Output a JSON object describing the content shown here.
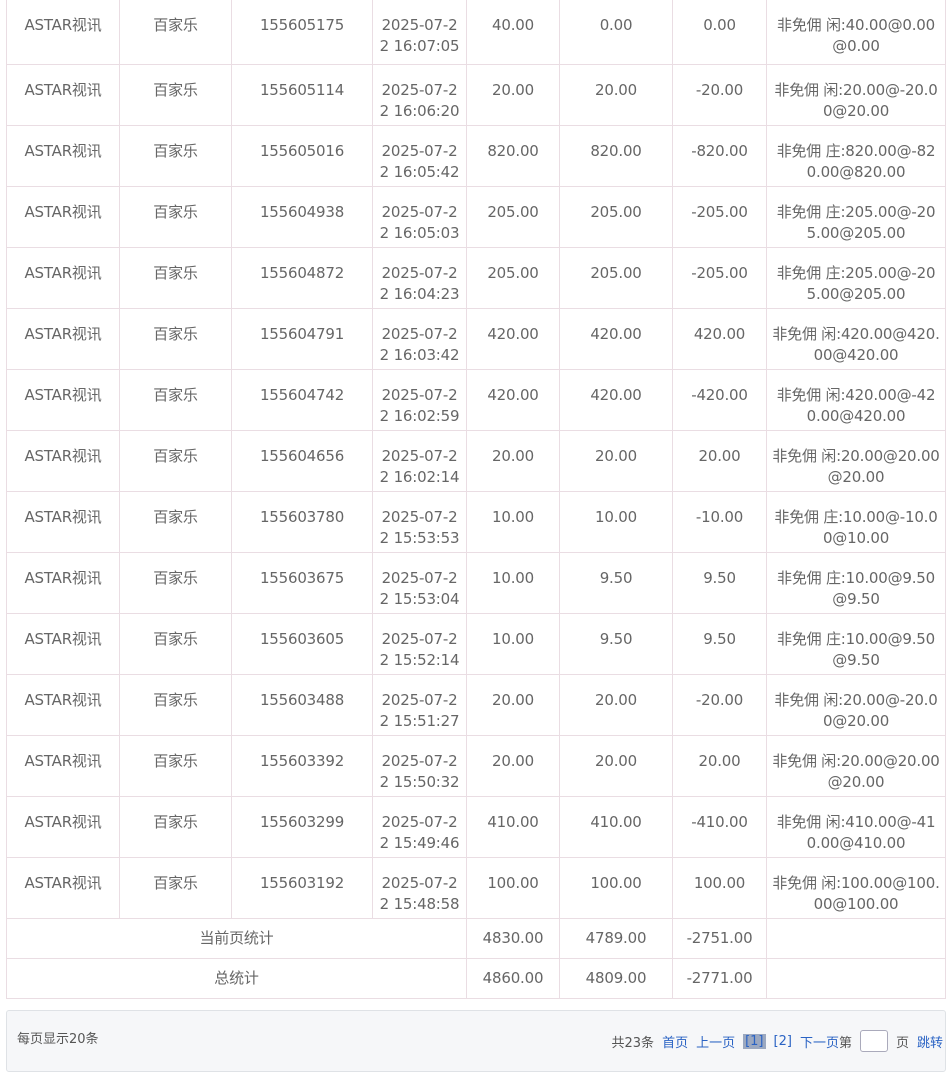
{
  "rows": [
    [
      "ASTAR视讯",
      "百家乐",
      "155605175",
      "2025-07-22 16:07:05",
      "40.00",
      "0.00",
      "0.00",
      "非免佣 闲:40.00@0.00@0.00"
    ],
    [
      "ASTAR视讯",
      "百家乐",
      "155605114",
      "2025-07-22 16:06:20",
      "20.00",
      "20.00",
      "-20.00",
      "非免佣 闲:20.00@-20.00@20.00"
    ],
    [
      "ASTAR视讯",
      "百家乐",
      "155605016",
      "2025-07-22 16:05:42",
      "820.00",
      "820.00",
      "-820.00",
      "非免佣 庄:820.00@-820.00@820.00"
    ],
    [
      "ASTAR视讯",
      "百家乐",
      "155604938",
      "2025-07-22 16:05:03",
      "205.00",
      "205.00",
      "-205.00",
      "非免佣 庄:205.00@-205.00@205.00"
    ],
    [
      "ASTAR视讯",
      "百家乐",
      "155604872",
      "2025-07-22 16:04:23",
      "205.00",
      "205.00",
      "-205.00",
      "非免佣 庄:205.00@-205.00@205.00"
    ],
    [
      "ASTAR视讯",
      "百家乐",
      "155604791",
      "2025-07-22 16:03:42",
      "420.00",
      "420.00",
      "420.00",
      "非免佣 闲:420.00@420.00@420.00"
    ],
    [
      "ASTAR视讯",
      "百家乐",
      "155604742",
      "2025-07-22 16:02:59",
      "420.00",
      "420.00",
      "-420.00",
      "非免佣 闲:420.00@-420.00@420.00"
    ],
    [
      "ASTAR视讯",
      "百家乐",
      "155604656",
      "2025-07-22 16:02:14",
      "20.00",
      "20.00",
      "20.00",
      "非免佣 闲:20.00@20.00@20.00"
    ],
    [
      "ASTAR视讯",
      "百家乐",
      "155603780",
      "2025-07-22 15:53:53",
      "10.00",
      "10.00",
      "-10.00",
      "非免佣 庄:10.00@-10.00@10.00"
    ],
    [
      "ASTAR视讯",
      "百家乐",
      "155603675",
      "2025-07-22 15:53:04",
      "10.00",
      "9.50",
      "9.50",
      "非免佣 庄:10.00@9.50@9.50"
    ],
    [
      "ASTAR视讯",
      "百家乐",
      "155603605",
      "2025-07-22 15:52:14",
      "10.00",
      "9.50",
      "9.50",
      "非免佣 庄:10.00@9.50@9.50"
    ],
    [
      "ASTAR视讯",
      "百家乐",
      "155603488",
      "2025-07-22 15:51:27",
      "20.00",
      "20.00",
      "-20.00",
      "非免佣 闲:20.00@-20.00@20.00"
    ],
    [
      "ASTAR视讯",
      "百家乐",
      "155603392",
      "2025-07-22 15:50:32",
      "20.00",
      "20.00",
      "20.00",
      "非免佣 闲:20.00@20.00@20.00"
    ],
    [
      "ASTAR视讯",
      "百家乐",
      "155603299",
      "2025-07-22 15:49:46",
      "410.00",
      "410.00",
      "-410.00",
      "非免佣 闲:410.00@-410.00@410.00"
    ],
    [
      "ASTAR视讯",
      "百家乐",
      "155603192",
      "2025-07-22 15:48:58",
      "100.00",
      "100.00",
      "100.00",
      "非免佣 闲:100.00@100.00@100.00"
    ]
  ],
  "summary": [
    {
      "label": "当前页统计",
      "bet": "4830.00",
      "valid": "4789.00",
      "win": "-2751.00"
    },
    {
      "label": "总统计",
      "bet": "4860.00",
      "valid": "4809.00",
      "win": "-2771.00"
    }
  ],
  "pager": {
    "per_page": "每页显示20条",
    "total": "共23条",
    "first": "首页",
    "prev": "上一页",
    "pages": [
      "[1]",
      "[2]"
    ],
    "next": "下一页",
    "goto_prefix": "第",
    "goto_suffix": "页",
    "jump": "跳转",
    "page_input": ""
  }
}
